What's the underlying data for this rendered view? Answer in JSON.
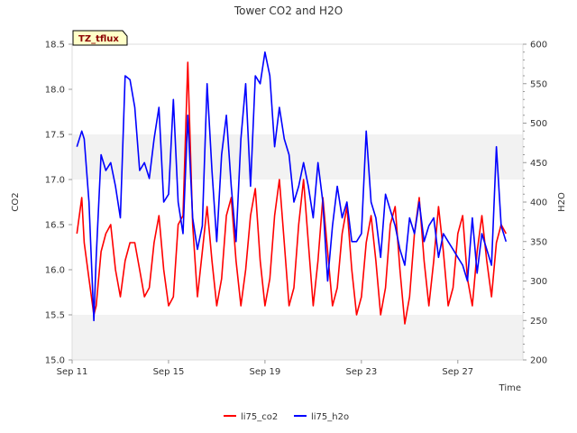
{
  "chart_data": {
    "type": "line",
    "title": "Tower CO2 and H2O",
    "badge": "TZ_tflux",
    "xlabel": "Time",
    "ylabel_left": "CO2",
    "ylabel_right": "H2O",
    "ylim_left": [
      15.0,
      18.5
    ],
    "ylim_right": [
      200,
      600
    ],
    "yticks_left": [
      "15.0",
      "15.5",
      "16.0",
      "16.5",
      "17.0",
      "17.5",
      "18.0",
      "18.5"
    ],
    "yticks_right": [
      "200",
      "250",
      "300",
      "350",
      "400",
      "450",
      "500",
      "550",
      "600"
    ],
    "xlim_days": [
      11,
      29.7
    ],
    "xtick_labels": [
      "Sep 11",
      "Sep 15",
      "Sep 19",
      "Sep 23",
      "Sep 27"
    ],
    "xtick_days": [
      11,
      15,
      19,
      23,
      27
    ],
    "grid": "horizontal bands",
    "legend_position": "bottom-center",
    "series": [
      {
        "name": "li75_co2",
        "axis": "left",
        "color": "#ff0000",
        "x": [
          11.2,
          11.4,
          11.5,
          11.7,
          11.9,
          12.0,
          12.2,
          12.4,
          12.6,
          12.8,
          13.0,
          13.2,
          13.4,
          13.6,
          13.8,
          14.0,
          14.2,
          14.4,
          14.6,
          14.8,
          15.0,
          15.2,
          15.4,
          15.6,
          15.8,
          16.0,
          16.2,
          16.4,
          16.6,
          16.8,
          17.0,
          17.2,
          17.4,
          17.6,
          17.8,
          18.0,
          18.2,
          18.4,
          18.6,
          18.8,
          19.0,
          19.2,
          19.4,
          19.6,
          19.8,
          20.0,
          20.2,
          20.4,
          20.6,
          20.8,
          21.0,
          21.2,
          21.4,
          21.6,
          21.8,
          22.0,
          22.2,
          22.4,
          22.6,
          22.8,
          23.0,
          23.2,
          23.4,
          23.6,
          23.8,
          24.0,
          24.2,
          24.4,
          24.6,
          24.8,
          25.0,
          25.2,
          25.4,
          25.6,
          25.8,
          26.0,
          26.2,
          26.4,
          26.6,
          26.8,
          27.0,
          27.2,
          27.4,
          27.6,
          27.8,
          28.0,
          28.2,
          28.4,
          28.6,
          28.8,
          29.0
        ],
        "values": [
          16.4,
          16.8,
          16.3,
          15.9,
          15.5,
          15.6,
          16.2,
          16.4,
          16.5,
          16.0,
          15.7,
          16.1,
          16.3,
          16.3,
          16.0,
          15.7,
          15.8,
          16.3,
          16.6,
          16.0,
          15.6,
          15.7,
          16.5,
          16.6,
          18.3,
          16.5,
          15.7,
          16.2,
          16.7,
          16.1,
          15.6,
          15.9,
          16.6,
          16.8,
          16.1,
          15.6,
          16.0,
          16.6,
          16.9,
          16.1,
          15.6,
          15.9,
          16.6,
          17.0,
          16.3,
          15.6,
          15.8,
          16.5,
          17.0,
          16.3,
          15.6,
          16.1,
          16.8,
          16.2,
          15.6,
          15.8,
          16.4,
          16.7,
          16.0,
          15.5,
          15.7,
          16.3,
          16.6,
          16.1,
          15.5,
          15.8,
          16.5,
          16.7,
          16.0,
          15.4,
          15.7,
          16.4,
          16.8,
          16.1,
          15.6,
          16.1,
          16.7,
          16.2,
          15.6,
          15.8,
          16.4,
          16.6,
          15.9,
          15.6,
          16.2,
          16.6,
          16.1,
          15.7,
          16.3,
          16.5,
          16.4
        ]
      },
      {
        "name": "li75_h2o",
        "axis": "right",
        "color": "#0000ff",
        "x": [
          11.2,
          11.4,
          11.5,
          11.7,
          11.9,
          12.0,
          12.2,
          12.4,
          12.6,
          12.8,
          13.0,
          13.2,
          13.4,
          13.6,
          13.8,
          14.0,
          14.2,
          14.4,
          14.6,
          14.8,
          15.0,
          15.2,
          15.4,
          15.6,
          15.8,
          16.0,
          16.2,
          16.4,
          16.6,
          16.8,
          17.0,
          17.2,
          17.4,
          17.6,
          17.8,
          18.0,
          18.2,
          18.4,
          18.6,
          18.8,
          19.0,
          19.2,
          19.4,
          19.6,
          19.8,
          20.0,
          20.2,
          20.4,
          20.6,
          20.8,
          21.0,
          21.2,
          21.4,
          21.6,
          21.8,
          22.0,
          22.2,
          22.4,
          22.6,
          22.8,
          23.0,
          23.2,
          23.4,
          23.6,
          23.8,
          24.0,
          24.2,
          24.4,
          24.6,
          24.8,
          25.0,
          25.2,
          25.4,
          25.6,
          25.8,
          26.0,
          26.2,
          26.4,
          26.6,
          26.8,
          27.0,
          27.2,
          27.4,
          27.6,
          27.8,
          28.0,
          28.2,
          28.4,
          28.6,
          28.8,
          29.0
        ],
        "values": [
          470,
          490,
          480,
          400,
          250,
          330,
          460,
          440,
          450,
          420,
          380,
          560,
          555,
          520,
          440,
          450,
          430,
          480,
          520,
          400,
          410,
          530,
          400,
          360,
          510,
          380,
          340,
          370,
          550,
          440,
          350,
          460,
          510,
          420,
          350,
          480,
          550,
          420,
          560,
          550,
          590,
          560,
          470,
          520,
          480,
          460,
          400,
          420,
          450,
          420,
          380,
          450,
          400,
          300,
          370,
          420,
          380,
          400,
          350,
          350,
          360,
          490,
          400,
          380,
          330,
          410,
          390,
          370,
          340,
          320,
          380,
          360,
          400,
          350,
          370,
          380,
          330,
          360,
          350,
          340,
          330,
          320,
          300,
          380,
          310,
          360,
          340,
          320,
          470,
          370,
          350
        ]
      }
    ]
  }
}
